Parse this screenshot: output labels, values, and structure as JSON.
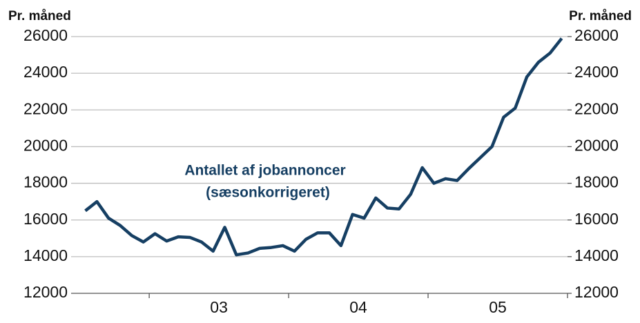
{
  "chart_data": {
    "type": "line",
    "y_label": "Pr. måned",
    "y2_label": "Pr. måned",
    "annotation": [
      "Antallet af jobannoncer",
      "(sæsonkorrigeret)"
    ],
    "x": [
      0,
      1,
      2,
      3,
      4,
      5,
      6,
      7,
      8,
      9,
      10,
      11,
      12,
      13,
      14,
      15,
      16,
      17,
      18,
      19,
      20,
      21,
      22,
      23,
      24,
      25,
      26,
      27,
      28,
      29,
      30,
      31,
      32,
      33,
      34,
      35,
      36,
      37,
      38,
      39,
      40,
      41
    ],
    "series": [
      {
        "color": "#163f63",
        "values": [
          16500,
          17000,
          16100,
          15700,
          15150,
          14800,
          15250,
          14850,
          15080,
          15050,
          14800,
          14300,
          15600,
          14100,
          14200,
          14450,
          14500,
          14600,
          14300,
          14950,
          15300,
          15300,
          14600,
          16300,
          16100,
          17200,
          16650,
          16600,
          17400,
          18850,
          18000,
          18250,
          18150,
          18800,
          19400,
          20000,
          21600,
          22100,
          23800,
          24600,
          25100,
          25900
        ]
      }
    ],
    "xlim": [
      -1.4,
      41.5
    ],
    "xticks": [
      {
        "value": 11.5,
        "label": "03"
      },
      {
        "value": 23.5,
        "label": "04"
      },
      {
        "value": 35.5,
        "label": "05"
      }
    ],
    "x_tick_marks": [
      5.5,
      17.5,
      29.5,
      41.5
    ],
    "ylim": [
      12000,
      26000
    ],
    "yticks": [
      12000,
      14000,
      16000,
      18000,
      20000,
      22000,
      24000,
      26000
    ],
    "y2lim": [
      12000,
      26000
    ],
    "y2ticks": [
      12000,
      14000,
      16000,
      18000,
      20000,
      22000,
      24000,
      26000
    ],
    "grid": true
  }
}
